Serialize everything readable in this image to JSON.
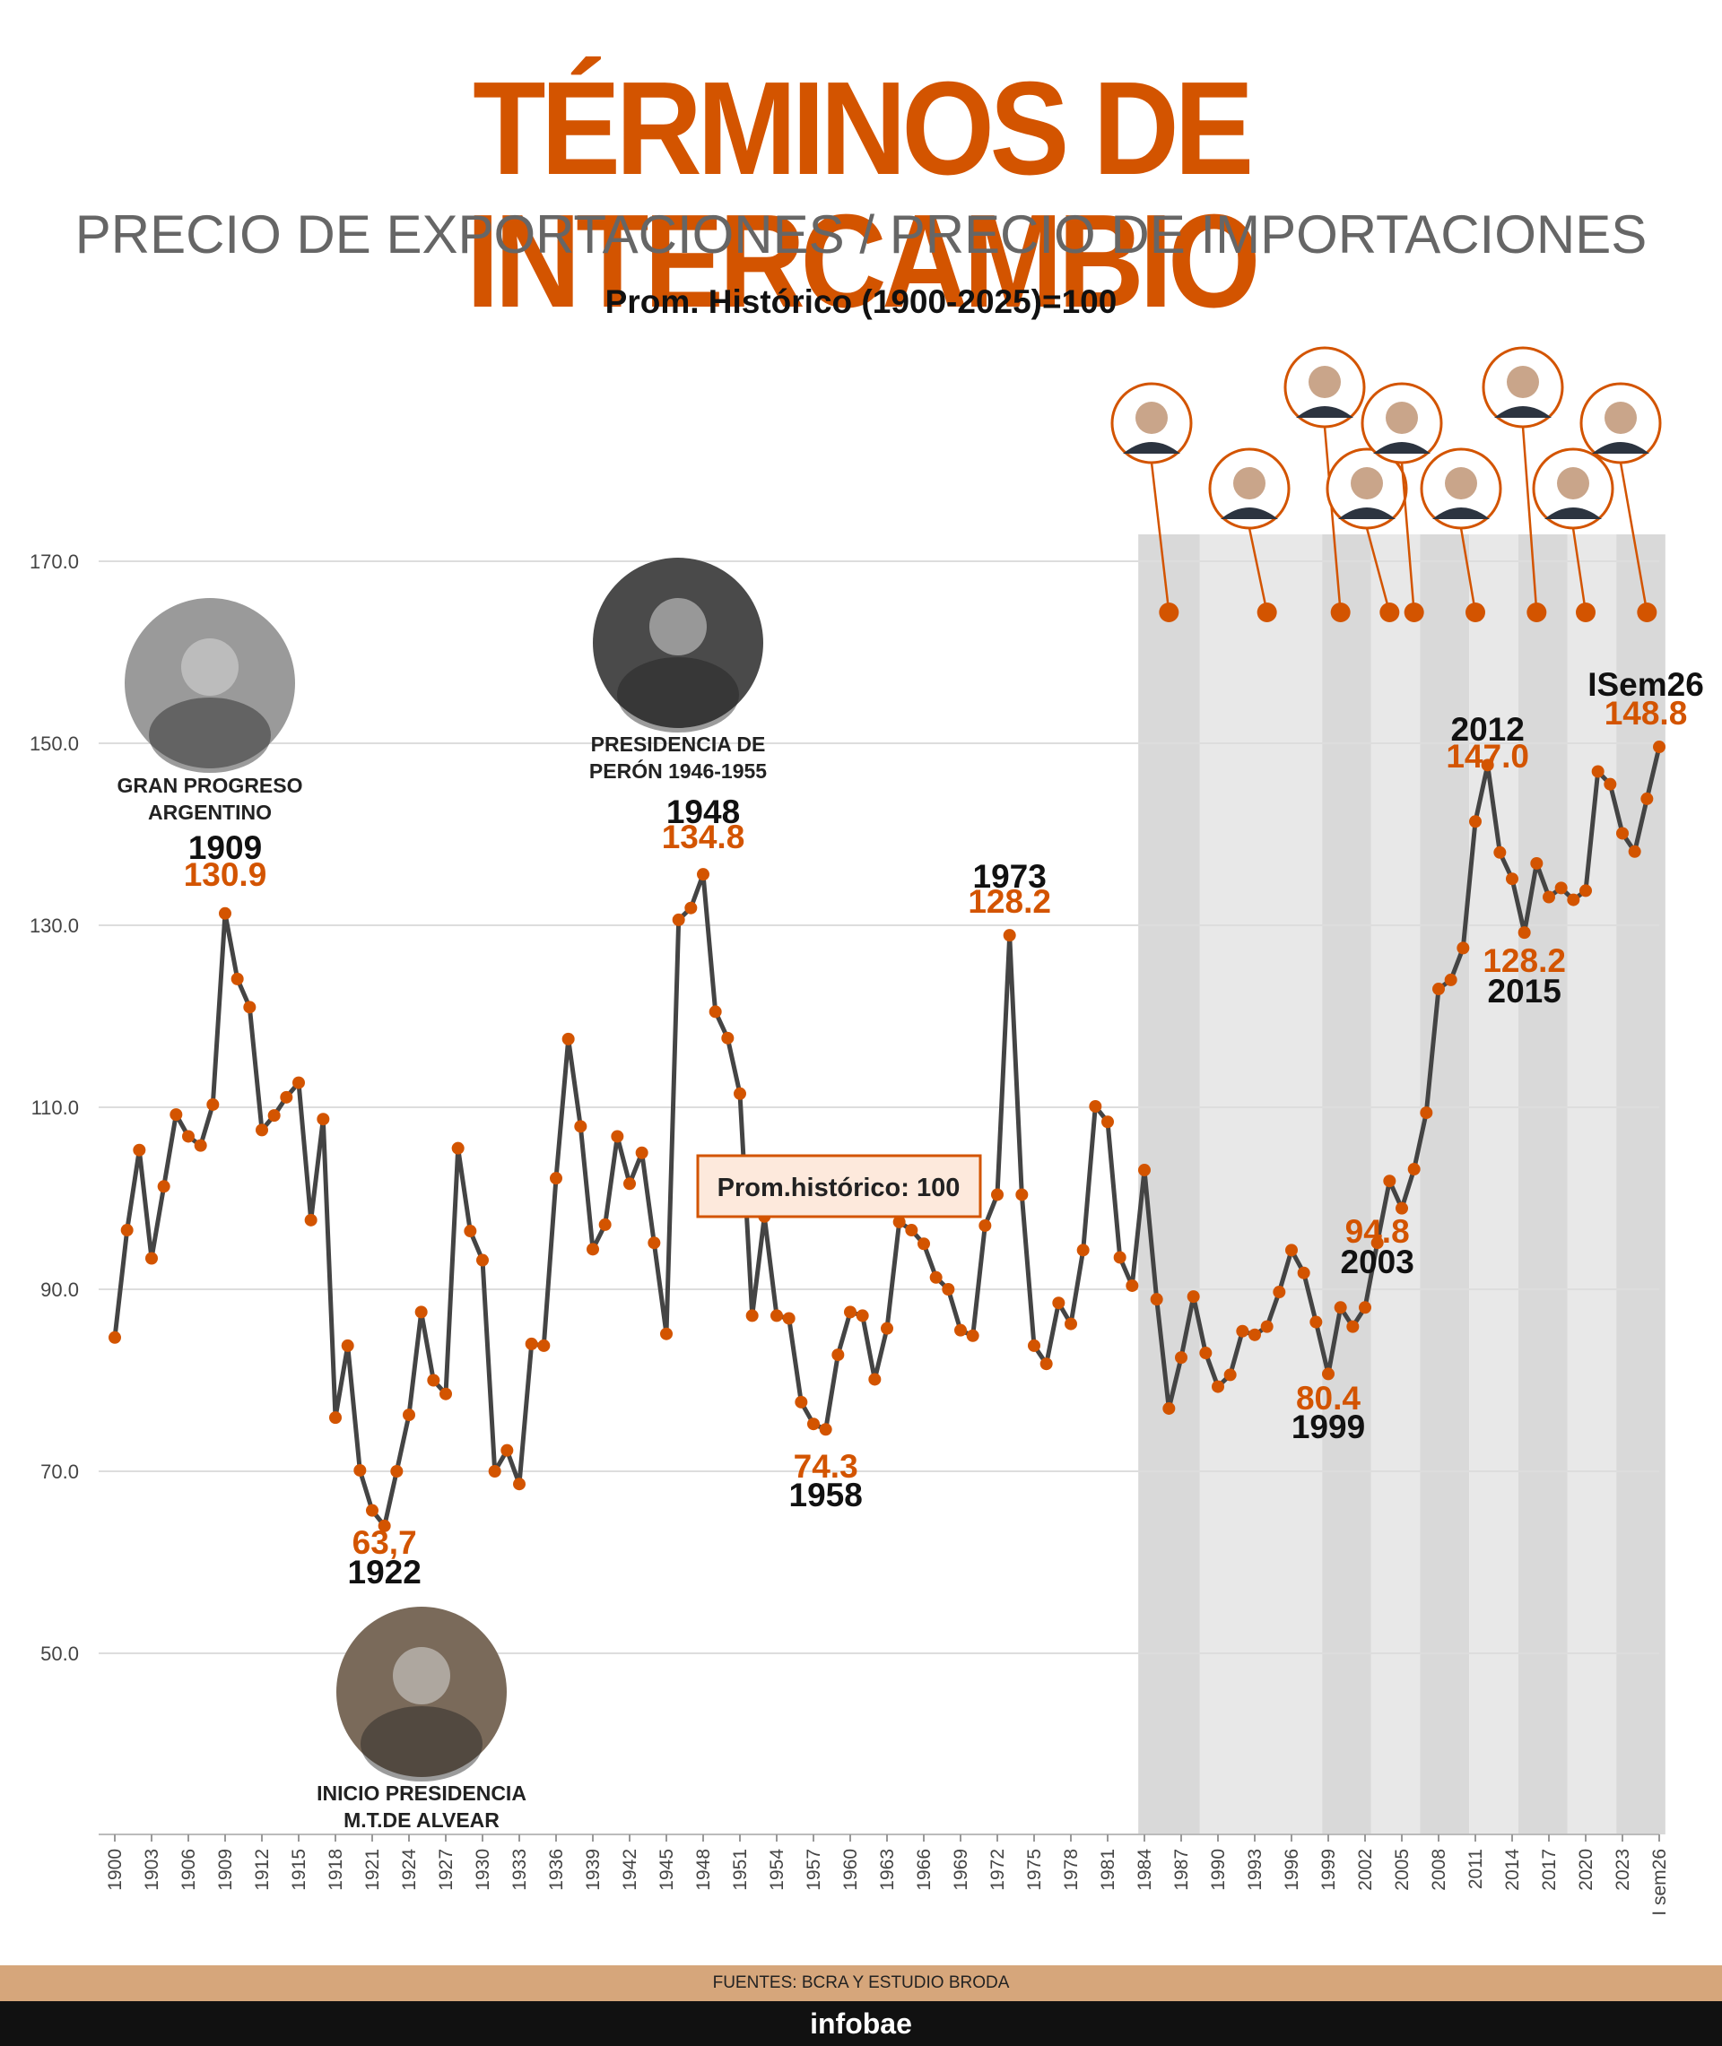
{
  "header": {
    "title": "TÉRMINOS DE INTERCAMBIO",
    "subtitle": "PRECIO DE EXPORTACIONES / PRECIO DE IMPORTACIONES",
    "base_note": "Prom. Histórico (1900-2025)=100"
  },
  "footer": {
    "source": "FUENTES: BCRA Y ESTUDIO BRODA",
    "brand": "infobae"
  },
  "colors": {
    "accent": "#d35400",
    "line": "#444444",
    "shade_dark": "#d9d9d9",
    "shade_light": "#e8e8e8",
    "box_bg": "#fde9dc"
  },
  "chart_data": {
    "type": "line",
    "title": "TÉRMINOS DE INTERCAMBIO",
    "ylim": [
      30,
      170
    ],
    "yticks": [
      "50.0",
      "70.0",
      "90.0",
      "110.0",
      "130.0",
      "150.0",
      "170.0"
    ],
    "grid": true,
    "x_tick_labels": [
      "1900",
      "1903",
      "1906",
      "1909",
      "1912",
      "1915",
      "1918",
      "1921",
      "1924",
      "1927",
      "1930",
      "1933",
      "1936",
      "1939",
      "1942",
      "1945",
      "1948",
      "1951",
      "1954",
      "1957",
      "1960",
      "1963",
      "1966",
      "1969",
      "1972",
      "1975",
      "1978",
      "1981",
      "1984",
      "1987",
      "1990",
      "1993",
      "1996",
      "1999",
      "2002",
      "2005",
      "2008",
      "2011",
      "2014",
      "2017",
      "2020",
      "2023",
      "I sem26"
    ],
    "series": [
      {
        "values": [
          84.7,
          96.5,
          105.3,
          93.4,
          101.3,
          109.2,
          106.8,
          105.8,
          110.3,
          131.3,
          124.1,
          121.0,
          107.5,
          109.1,
          111.1,
          112.7,
          97.6,
          108.7,
          75.9,
          83.8,
          70.1,
          65.7,
          64.0,
          70.0,
          76.2,
          87.5,
          80.0,
          78.5,
          105.5,
          96.4,
          93.2,
          70.0,
          72.3,
          68.6,
          84.0,
          83.8,
          102.2,
          117.5,
          107.9,
          94.4,
          97.1,
          106.8,
          101.6,
          105.0,
          95.1,
          85.1,
          130.6,
          131.9,
          135.6,
          120.5,
          117.6,
          111.5,
          87.1,
          98.0,
          87.1,
          86.8,
          77.6,
          75.2,
          74.6,
          82.8,
          87.5,
          87.1,
          80.1,
          85.7,
          97.4,
          96.5,
          95.0,
          91.3,
          90.0,
          85.5,
          84.9,
          97.0,
          100.4,
          128.9,
          100.4,
          83.8,
          81.8,
          88.5,
          86.2,
          94.3,
          110.1,
          108.4,
          93.5,
          90.4,
          103.1,
          88.9,
          76.9,
          82.5,
          89.2,
          83.0,
          79.3,
          80.6,
          85.4,
          85.0,
          85.9,
          89.7,
          94.3,
          91.8,
          86.4,
          80.7,
          88.0,
          85.9,
          88.0,
          95.1,
          101.9,
          98.9,
          103.2,
          109.4,
          123.0,
          124.0,
          127.5,
          141.4,
          147.6,
          138.0,
          135.1,
          129.2,
          136.8,
          133.1,
          134.1,
          132.8,
          133.8,
          146.9,
          145.5,
          140.1,
          138.1,
          143.9,
          149.6
        ]
      }
    ],
    "annotations": [
      {
        "year_label": "1909",
        "value": "130.9",
        "caption": [
          "GRAN PROGRESO",
          "ARGENTINO"
        ]
      },
      {
        "year_label": "1922",
        "value": "63,7",
        "caption": [
          "INICIO PRESIDENCIA",
          "M.T.DE ALVEAR"
        ]
      },
      {
        "year_label": "1948",
        "value": "134.8",
        "caption": [
          "PRESIDENCIA DE",
          "PERÓN 1946-1955"
        ]
      },
      {
        "year_label": "1958",
        "value": "74.3"
      },
      {
        "year_label": "1973",
        "value": "128.2"
      },
      {
        "year_label": "1999",
        "value": "80.4"
      },
      {
        "year_label": "2003",
        "value": "94.8"
      },
      {
        "year_label": "2012",
        "value": "147.0"
      },
      {
        "year_label": "2015",
        "value": "128.2"
      },
      {
        "year_label": "ISem26",
        "value": "148.8"
      }
    ],
    "reference_box": "Prom.histórico: 100"
  }
}
